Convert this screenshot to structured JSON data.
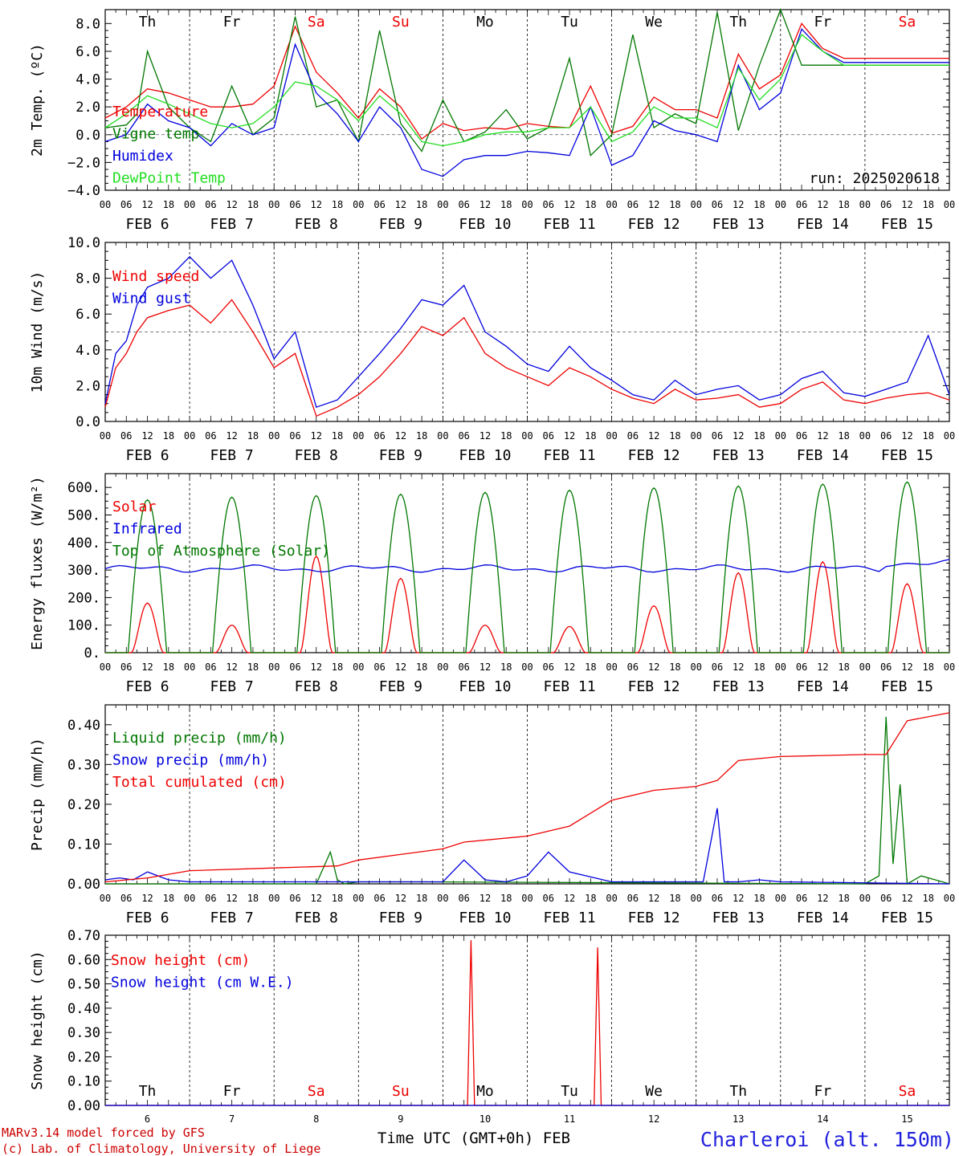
{
  "days": {
    "dates": [
      "FEB  6",
      "FEB  7",
      "FEB  8",
      "FEB  9",
      "FEB 10",
      "FEB 11",
      "FEB 12",
      "FEB 13",
      "FEB 14",
      "FEB 15"
    ],
    "day_numbers": [
      "6",
      "7",
      "8",
      "9",
      "10",
      "11",
      "12",
      "13",
      "14",
      "15"
    ],
    "weekdays": [
      "Th",
      "Fr",
      "Sa",
      "Su",
      "Mo",
      "Tu",
      "We",
      "Th",
      "Fr",
      "Sa"
    ],
    "weekend_flags": [
      false,
      false,
      true,
      true,
      false,
      false,
      false,
      false,
      false,
      true
    ],
    "hour_ticks": [
      "00",
      "06",
      "12",
      "18"
    ],
    "final_hour": "00"
  },
  "colors": {
    "red": "#ee0000",
    "green": "#007700",
    "blue": "#0000dd",
    "lightgreen": "#22dd22",
    "weekend": "#ee0000"
  },
  "chart_data": [
    {
      "type": "line",
      "id": "temp",
      "ylabel": "2m Temp. (ºC)",
      "ylim": [
        -4,
        9
      ],
      "yticks": [
        -4,
        -2,
        0,
        2,
        4,
        6,
        8
      ],
      "ytick_labels": [
        "−4.0",
        "−2.0",
        "0.0",
        "2.0",
        "4.0",
        "6.0",
        "8.0"
      ],
      "reference_line": 0,
      "annotation": "run: 2025020618",
      "series": [
        {
          "name": "Temperature",
          "color": "#ee0000",
          "x": [
            0,
            6,
            12,
            18,
            24,
            30,
            36,
            42,
            48,
            54,
            60,
            66,
            72,
            78,
            84,
            90,
            96,
            102,
            108,
            114,
            120,
            126,
            132,
            138,
            144,
            150,
            156,
            162,
            168,
            174,
            180,
            186,
            192,
            198,
            204,
            210,
            216,
            222,
            228,
            234,
            240
          ],
          "y": [
            1.2,
            2.0,
            3.3,
            3.0,
            2.5,
            2.0,
            2.0,
            2.2,
            3.5,
            7.8,
            4.5,
            3.0,
            1.2,
            3.3,
            2.0,
            -0.3,
            0.8,
            0.3,
            0.5,
            0.4,
            0.8,
            0.6,
            0.5,
            3.5,
            0.1,
            0.6,
            2.7,
            1.8,
            1.8,
            1.2,
            5.8,
            3.3,
            4.3,
            8.0,
            6.2,
            5.5,
            5.5,
            5.5,
            5.5,
            5.5,
            5.5
          ]
        },
        {
          "name": "Vigne temp",
          "color": "#007700",
          "x": [
            0,
            6,
            9,
            12,
            18,
            24,
            30,
            36,
            42,
            48,
            54,
            60,
            66,
            72,
            78,
            84,
            90,
            96,
            102,
            108,
            114,
            120,
            126,
            132,
            138,
            144,
            150,
            156,
            162,
            168,
            174,
            180,
            186,
            192,
            198,
            204,
            210,
            216,
            222,
            228,
            234,
            240
          ],
          "y": [
            0.5,
            0.7,
            1.5,
            6.0,
            2.0,
            0.5,
            -0.5,
            3.5,
            0.0,
            1.2,
            8.5,
            2.0,
            2.5,
            -0.5,
            7.5,
            0.8,
            -1.2,
            2.5,
            -0.5,
            0.2,
            1.8,
            -0.3,
            0.5,
            5.5,
            -1.5,
            0.0,
            7.2,
            0.5,
            1.5,
            0.8,
            8.8,
            0.3,
            5.0,
            9.0,
            5.0,
            5.0,
            5.0,
            5.0,
            5.0,
            5.0,
            5.0,
            5.0
          ]
        },
        {
          "name": "Humidex",
          "color": "#0000dd",
          "x": [
            0,
            6,
            12,
            18,
            24,
            30,
            36,
            42,
            48,
            54,
            60,
            66,
            72,
            78,
            84,
            90,
            96,
            102,
            108,
            114,
            120,
            126,
            132,
            138,
            144,
            150,
            156,
            162,
            168,
            174,
            180,
            186,
            192,
            198,
            204,
            210,
            216,
            222,
            228,
            234,
            240
          ],
          "y": [
            -0.5,
            0.0,
            2.2,
            1.0,
            0.5,
            -0.8,
            0.8,
            0.0,
            0.5,
            6.5,
            3.0,
            1.5,
            -0.5,
            2.0,
            0.5,
            -2.5,
            -3.0,
            -1.8,
            -1.5,
            -1.5,
            -1.2,
            -1.3,
            -1.5,
            2.0,
            -2.2,
            -1.5,
            1.0,
            0.3,
            0.0,
            -0.5,
            5.0,
            1.8,
            3.0,
            7.6,
            6.0,
            5.2,
            5.2,
            5.2,
            5.2,
            5.2,
            5.2
          ]
        },
        {
          "name": "DewPoint Temp",
          "color": "#22dd22",
          "x": [
            0,
            6,
            12,
            18,
            24,
            30,
            36,
            42,
            48,
            54,
            60,
            66,
            72,
            78,
            84,
            90,
            96,
            102,
            108,
            114,
            120,
            126,
            132,
            138,
            144,
            150,
            156,
            162,
            168,
            174,
            180,
            186,
            192,
            198,
            204,
            210,
            216,
            222,
            228,
            234,
            240
          ],
          "y": [
            0.5,
            1.5,
            2.8,
            2.2,
            1.5,
            0.8,
            0.5,
            0.8,
            2.0,
            3.8,
            3.5,
            2.5,
            1.0,
            2.8,
            1.5,
            -0.5,
            -0.8,
            -0.5,
            0.0,
            0.2,
            0.2,
            0.5,
            0.5,
            2.0,
            -0.5,
            0.2,
            2.0,
            1.2,
            1.2,
            0.5,
            4.8,
            2.5,
            4.0,
            7.2,
            6.0,
            5.0,
            5.0,
            5.0,
            5.0,
            5.0,
            5.0
          ]
        }
      ]
    },
    {
      "type": "line",
      "id": "wind",
      "ylabel": "10m Wind (m/s)",
      "ylim": [
        0,
        10
      ],
      "yticks": [
        0,
        2,
        4,
        6,
        8,
        10
      ],
      "ytick_labels": [
        "0.0",
        "2.0",
        "4.0",
        "6.0",
        "8.0",
        "10.0"
      ],
      "reference_line": 5,
      "series": [
        {
          "name": "Wind speed",
          "color": "#ee0000",
          "x": [
            0,
            3,
            6,
            9,
            12,
            18,
            24,
            30,
            36,
            42,
            48,
            54,
            60,
            66,
            72,
            78,
            84,
            90,
            96,
            102,
            108,
            114,
            120,
            126,
            132,
            138,
            144,
            150,
            156,
            162,
            168,
            174,
            180,
            186,
            192,
            198,
            204,
            210,
            216,
            222,
            228,
            234,
            240
          ],
          "y": [
            0.8,
            3.0,
            3.8,
            5.0,
            5.8,
            6.2,
            6.5,
            5.5,
            6.8,
            5.0,
            3.0,
            3.8,
            0.3,
            0.8,
            1.5,
            2.5,
            3.8,
            5.3,
            4.8,
            5.8,
            3.8,
            3.0,
            2.5,
            2.0,
            3.0,
            2.5,
            1.8,
            1.3,
            1.0,
            1.8,
            1.2,
            1.3,
            1.5,
            0.8,
            1.0,
            1.8,
            2.2,
            1.2,
            1.0,
            1.3,
            1.5,
            1.6,
            1.2
          ]
        },
        {
          "name": "Wind gust",
          "color": "#0000dd",
          "x": [
            0,
            3,
            6,
            9,
            12,
            18,
            24,
            30,
            36,
            42,
            48,
            54,
            60,
            66,
            72,
            78,
            84,
            90,
            96,
            102,
            108,
            114,
            120,
            126,
            132,
            138,
            144,
            150,
            156,
            162,
            168,
            174,
            180,
            186,
            192,
            198,
            204,
            210,
            216,
            222,
            228,
            234,
            240
          ],
          "y": [
            1.0,
            3.8,
            4.5,
            6.5,
            7.5,
            8.0,
            9.2,
            8.0,
            9.0,
            6.5,
            3.5,
            5.0,
            0.8,
            1.2,
            2.5,
            3.8,
            5.2,
            6.8,
            6.5,
            7.6,
            5.0,
            4.2,
            3.2,
            2.8,
            4.2,
            3.0,
            2.3,
            1.5,
            1.2,
            2.3,
            1.5,
            1.8,
            2.0,
            1.2,
            1.5,
            2.4,
            2.8,
            1.6,
            1.4,
            1.8,
            2.2,
            4.8,
            1.5
          ]
        }
      ]
    },
    {
      "type": "line",
      "id": "flux",
      "ylabel": "Energy fluxes (W/m²)",
      "ylim": [
        0,
        650
      ],
      "yticks": [
        0,
        100,
        200,
        300,
        400,
        500,
        600
      ],
      "ytick_labels": [
        "0.",
        "100.",
        "200.",
        "300.",
        "400.",
        "500.",
        "600."
      ],
      "series": [
        {
          "name": "Solar",
          "color": "#ee0000",
          "daily_peaks": [
            180,
            100,
            350,
            270,
            100,
            95,
            170,
            290,
            330,
            250
          ]
        },
        {
          "name": "Infrared",
          "color": "#0000dd",
          "baseline": 305
        },
        {
          "name": "Top of Atmosphere (Solar)",
          "color": "#007700",
          "daily_peaks": [
            555,
            565,
            570,
            575,
            582,
            590,
            598,
            605,
            612,
            620
          ]
        }
      ]
    },
    {
      "type": "line",
      "id": "precip",
      "ylabel": "Precip (mm/h)",
      "ylim": [
        0,
        0.45
      ],
      "yticks": [
        0,
        0.1,
        0.2,
        0.3,
        0.4
      ],
      "ytick_labels": [
        "0.00",
        "0.10",
        "0.20",
        "0.30",
        "0.40"
      ],
      "series": [
        {
          "name": "Liquid precip (mm/h)",
          "color": "#007700",
          "x": [
            0,
            60,
            64,
            66,
            68,
            72,
            90,
            216,
            220,
            222,
            224,
            226,
            228,
            232,
            236,
            240
          ],
          "y": [
            0,
            0,
            0.08,
            0.01,
            0,
            0.005,
            0.005,
            0,
            0.02,
            0.42,
            0.05,
            0.25,
            0,
            0.02,
            0.01,
            0
          ]
        },
        {
          "name": "Snow precip (mm/h)",
          "color": "#0000dd",
          "x": [
            0,
            4,
            8,
            12,
            18,
            24,
            60,
            96,
            102,
            108,
            114,
            120,
            126,
            132,
            144,
            170,
            174,
            176,
            180,
            186,
            192,
            240
          ],
          "y": [
            0.01,
            0.015,
            0.01,
            0.03,
            0.01,
            0.005,
            0.005,
            0.005,
            0.06,
            0.01,
            0.005,
            0.02,
            0.08,
            0.03,
            0.005,
            0.005,
            0.19,
            0.005,
            0.005,
            0.01,
            0.005,
            0
          ]
        },
        {
          "name": "Total cumulated (cm)",
          "color": "#ee0000",
          "x": [
            0,
            12,
            24,
            48,
            66,
            72,
            96,
            102,
            120,
            132,
            144,
            156,
            168,
            174,
            180,
            192,
            216,
            222,
            228,
            240
          ],
          "y": [
            0.005,
            0.015,
            0.033,
            0.04,
            0.045,
            0.06,
            0.088,
            0.105,
            0.12,
            0.145,
            0.21,
            0.235,
            0.245,
            0.26,
            0.31,
            0.32,
            0.325,
            0.325,
            0.41,
            0.43
          ]
        }
      ]
    },
    {
      "type": "line",
      "id": "snow",
      "ylabel": "Snow height (cm)",
      "ylim": [
        0,
        0.7
      ],
      "yticks": [
        0,
        0.1,
        0.2,
        0.3,
        0.4,
        0.5,
        0.6,
        0.7
      ],
      "ytick_labels": [
        "0.00",
        "0.10",
        "0.20",
        "0.30",
        "0.40",
        "0.50",
        "0.60",
        "0.70"
      ],
      "series": [
        {
          "name": "Snow height (cm)",
          "color": "#ee0000",
          "x": [
            0,
            103,
            104,
            105,
            139,
            140,
            141,
            240
          ],
          "y": [
            0,
            0,
            0.68,
            0,
            0,
            0.65,
            0,
            0
          ]
        },
        {
          "name": "Snow height (cm W.E.)",
          "color": "#0000dd",
          "x": [
            0,
            240
          ],
          "y": [
            0,
            0
          ]
        }
      ]
    }
  ],
  "footer": {
    "model_line": "MARv3.14 model forced by GFS",
    "credit_line": "(c) Lab. of Climatology, University of Liege",
    "time_label": "Time UTC (GMT+0h) FEB",
    "station": "Charleroi (alt. 150m)"
  }
}
